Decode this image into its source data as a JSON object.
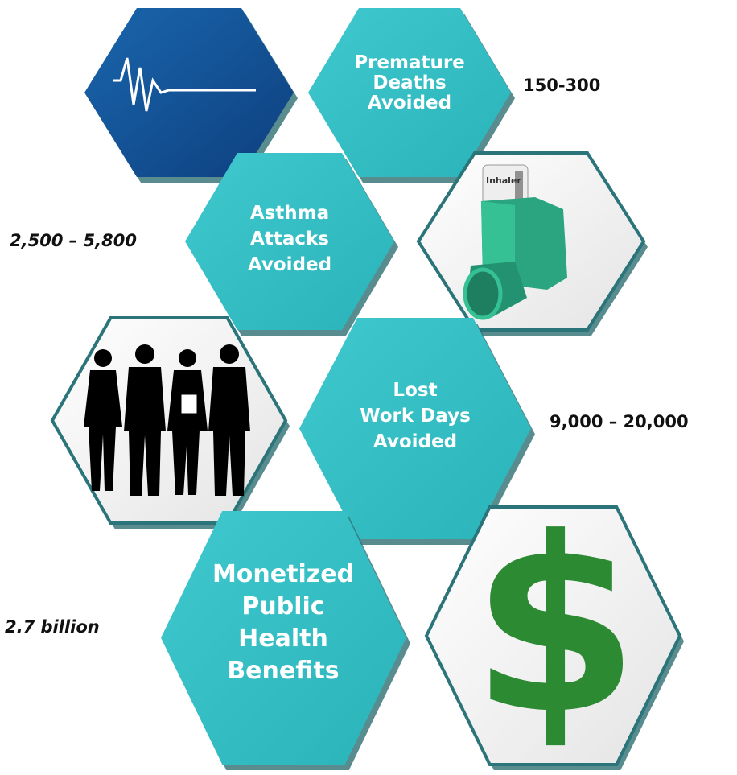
{
  "panels": [
    {
      "label_lines": [
        "Premature",
        "Deaths",
        "Avoided"
      ],
      "value": "150-300"
    },
    {
      "label_lines": [
        "Asthma",
        "Attacks",
        "Avoided"
      ],
      "value": "2,500 – 5,800"
    },
    {
      "label_lines": [
        "Lost",
        "Work Days",
        "Avoided"
      ],
      "value": "9,000 – 20,000"
    },
    {
      "label_lines": [
        "Monetized",
        "Public",
        "Health",
        "Benefits"
      ],
      "value": "2.7 billion"
    }
  ],
  "inhaler_label": "Inhaler",
  "dollar_sign": "$"
}
